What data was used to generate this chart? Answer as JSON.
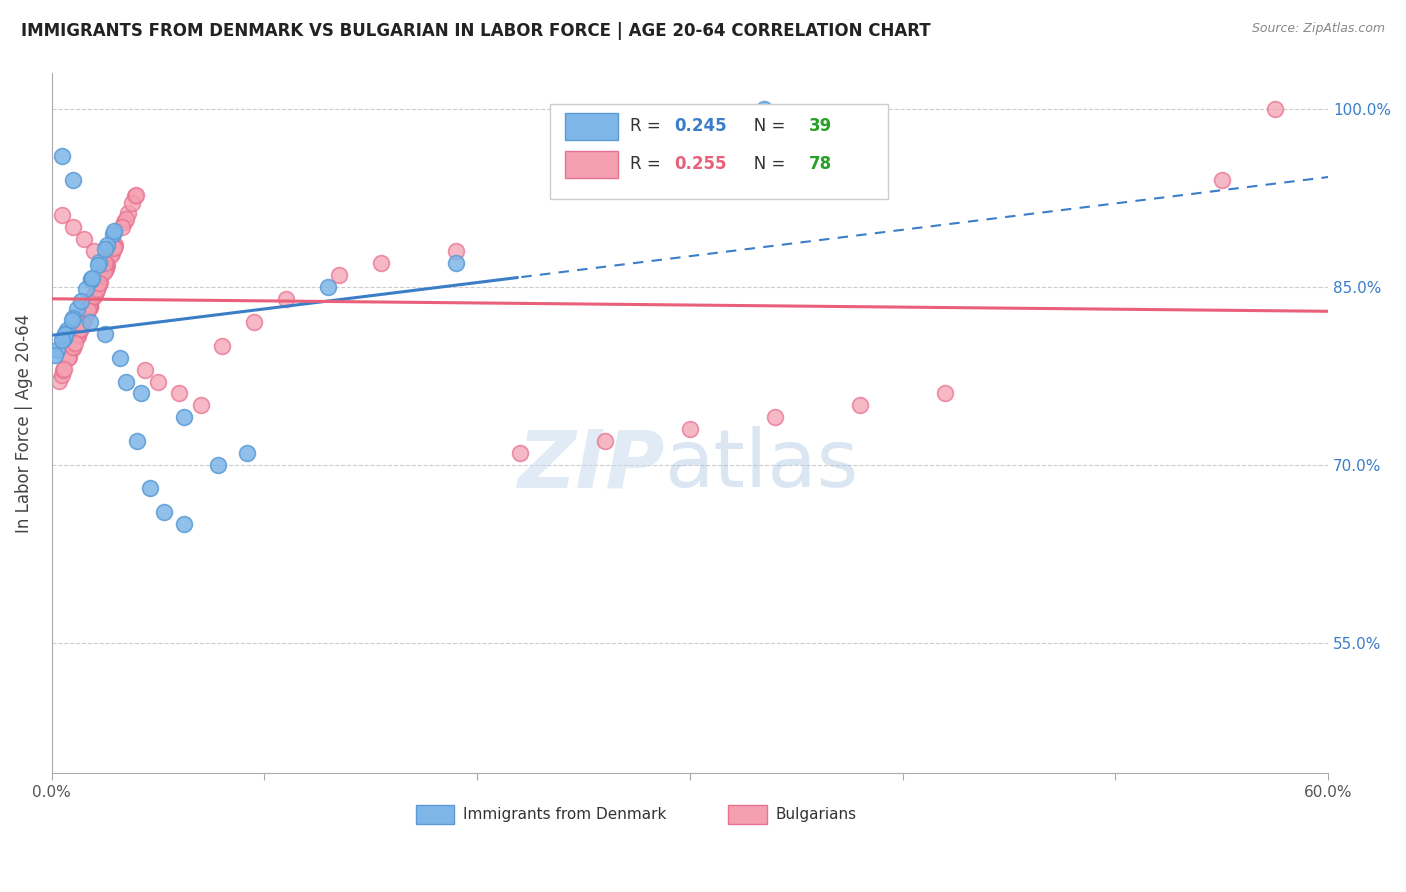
{
  "title": "IMMIGRANTS FROM DENMARK VS BULGARIAN IN LABOR FORCE | AGE 20-64 CORRELATION CHART",
  "source": "Source: ZipAtlas.com",
  "ylabel": "In Labor Force | Age 20-64",
  "xlim": [
    0.0,
    0.6
  ],
  "ylim": [
    0.44,
    1.03
  ],
  "xtick_positions": [
    0.0,
    0.1,
    0.2,
    0.3,
    0.4,
    0.5,
    0.6
  ],
  "xticklabels": [
    "0.0%",
    "",
    "",
    "",
    "",
    "",
    "60.0%"
  ],
  "ytick_positions": [
    0.55,
    0.7,
    0.85,
    1.0
  ],
  "yticklabels": [
    "55.0%",
    "70.0%",
    "85.0%",
    "100.0%"
  ],
  "denmark_R": 0.245,
  "denmark_N": 39,
  "bulgarian_R": 0.255,
  "bulgarian_N": 78,
  "denmark_color": "#7EB6E8",
  "bulgarian_color": "#F4A0B0",
  "denmark_edge": "#5B9BD5",
  "bulgarian_edge": "#E87090",
  "trend_denmark_color": "#3B7EC8",
  "trend_bulgarian_color": "#E8607A",
  "legend_R_dk_color": "#3B7EC8",
  "legend_R_bg_color": "#E8607A",
  "legend_N_color": "#28A028",
  "ytick_color": "#3B7EC8"
}
